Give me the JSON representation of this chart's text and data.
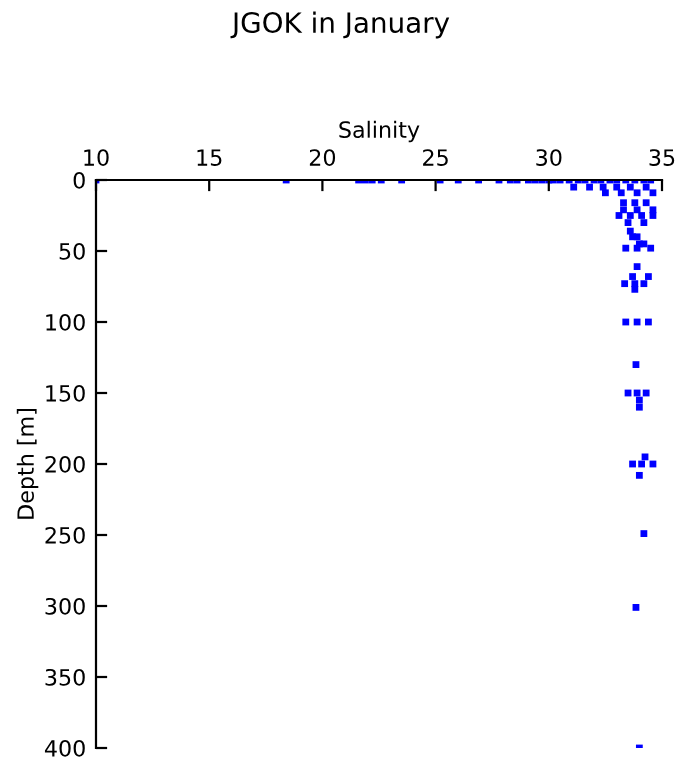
{
  "chart_data": {
    "type": "scatter",
    "title": "JGOK in January",
    "xlabel": "Salinity",
    "ylabel": "Depth [m]",
    "xlim": [
      10,
      35
    ],
    "xticks": [
      10,
      15,
      20,
      25,
      30,
      35
    ],
    "ylim": [
      400,
      0
    ],
    "yticks": [
      0,
      50,
      100,
      150,
      200,
      250,
      300,
      350,
      400
    ],
    "grid": false,
    "marker": "square",
    "series": [
      {
        "color": "#0000ff",
        "x": [
          10.0,
          18.4,
          21.6,
          21.9,
          22.2,
          22.6,
          23.5,
          25.2,
          26.0,
          26.9,
          27.8,
          28.3,
          28.6,
          29.1,
          29.4,
          29.7,
          30.0,
          30.2,
          30.5,
          30.9,
          31.3,
          31.6,
          32.0,
          32.3,
          32.7,
          33.0,
          33.4,
          33.8,
          34.2,
          34.5,
          31.1,
          31.8,
          32.4,
          33.0,
          33.6,
          34.3,
          32.5,
          33.2,
          33.9,
          34.6,
          33.3,
          33.8,
          34.3,
          33.3,
          33.9,
          34.6,
          33.1,
          33.6,
          34.1,
          34.6,
          33.5,
          34.2,
          33.6,
          33.9,
          34.2,
          33.7,
          34.0,
          33.4,
          33.9,
          34.5,
          33.9,
          33.7,
          34.4,
          33.35,
          33.8,
          34.2,
          33.8,
          33.4,
          33.9,
          34.4,
          33.85,
          33.5,
          33.9,
          34.3,
          34.0,
          34.0,
          34.25,
          33.7,
          34.1,
          34.6,
          34.0,
          34.2,
          33.85,
          34.0
        ],
        "values": [
          0,
          0,
          0,
          0,
          0,
          0,
          0,
          0,
          0,
          0,
          0,
          0,
          0,
          0,
          0,
          0,
          0,
          0,
          0,
          0,
          0,
          0,
          0,
          0,
          0,
          0,
          0,
          0,
          0,
          0,
          5,
          5,
          5,
          5,
          5,
          5,
          9,
          9,
          9,
          9,
          16,
          16,
          16,
          21,
          21,
          21,
          25,
          25,
          25,
          25,
          30,
          30,
          36,
          40,
          45,
          40,
          45,
          48,
          48,
          48,
          61,
          68,
          68,
          73,
          73,
          73,
          77,
          100,
          100,
          100,
          130,
          150,
          150,
          150,
          155,
          160,
          195,
          200,
          200,
          200,
          208,
          249,
          301,
          400
        ]
      }
    ]
  }
}
